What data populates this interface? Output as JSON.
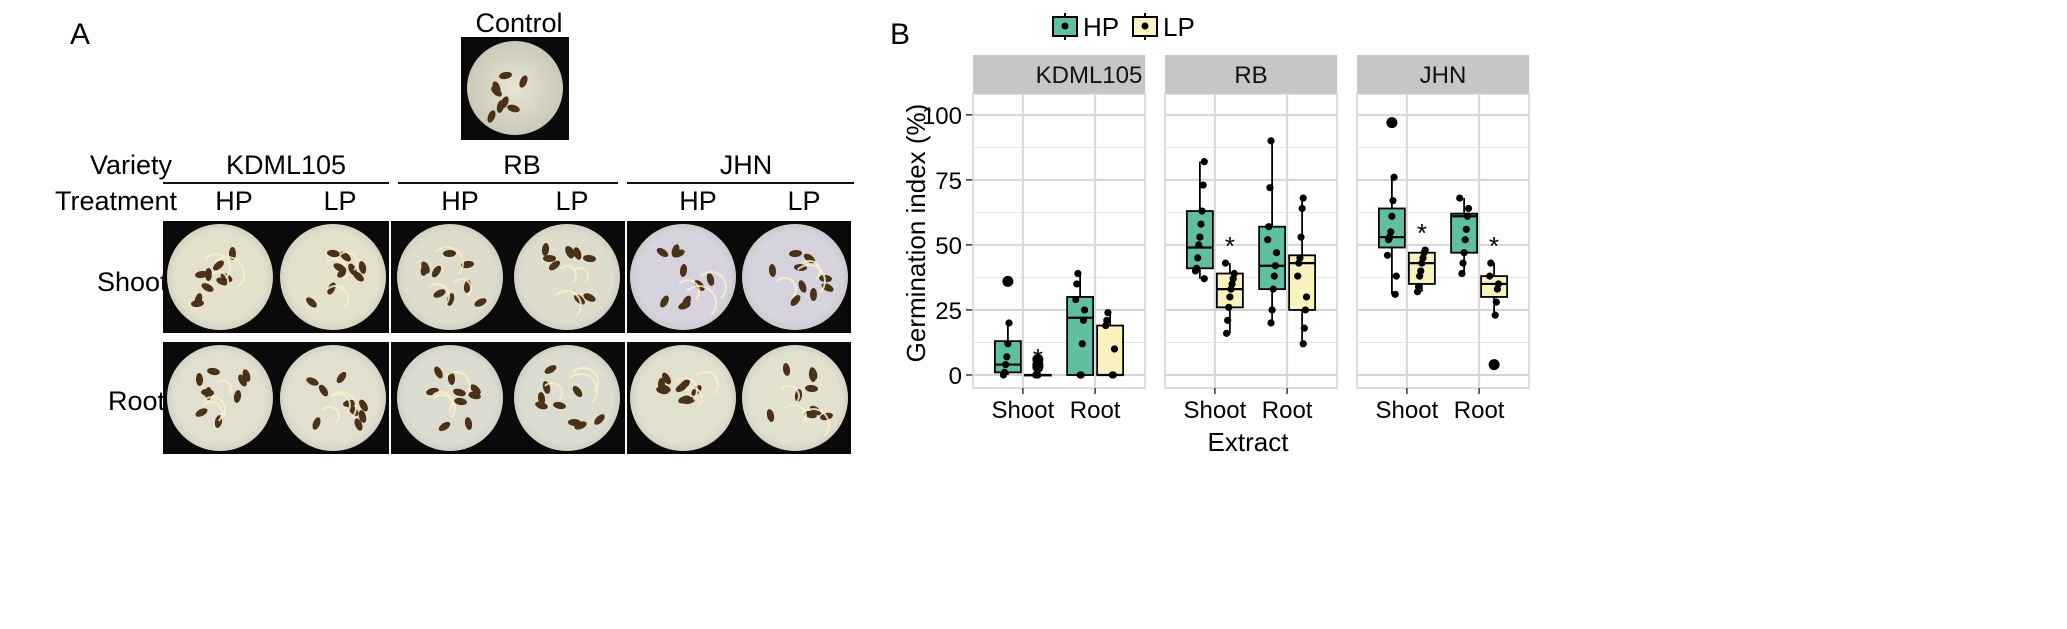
{
  "panel_a": {
    "letter": "A",
    "control_label": "Control",
    "variety_label": "Variety",
    "treatment_label": "Treatment",
    "varieties": [
      "KDML105",
      "RB",
      "JHN"
    ],
    "treatments": [
      "HP",
      "LP"
    ],
    "extracts": [
      "Shoot",
      "Root"
    ]
  },
  "panel_b": {
    "letter": "B",
    "legend": [
      {
        "label": "HP",
        "color": "#5fbfa0"
      },
      {
        "label": "LP",
        "color": "#fbf3bf"
      }
    ]
  },
  "chart_data": {
    "type": "box",
    "title": "",
    "xlabel": "Extract",
    "ylabel": "Germination index (%)",
    "ylim": [
      -5,
      108
    ],
    "yticks": [
      0,
      25,
      50,
      75,
      100
    ],
    "grid": true,
    "legend_position": "top",
    "facets": [
      "KDML105",
      "RB",
      "JHN"
    ],
    "categories": [
      "Shoot",
      "Root"
    ],
    "series": [
      {
        "name": "HP",
        "color": "#5fbfa0"
      },
      {
        "name": "LP",
        "color": "#fbf3bf"
      }
    ],
    "boxes": [
      {
        "facet": "KDML105",
        "category": "Shoot",
        "series": "HP",
        "min": 0,
        "q1": 1,
        "median": 4,
        "q3": 13,
        "max": 20,
        "points": [
          0,
          1,
          4,
          7,
          12,
          20,
          36
        ],
        "outliers": [
          36
        ],
        "signif": ""
      },
      {
        "facet": "KDML105",
        "category": "Shoot",
        "series": "LP",
        "min": 0,
        "q1": 0,
        "median": 0,
        "q3": 0,
        "max": 0,
        "points": [
          0,
          0,
          0,
          3,
          4,
          6
        ],
        "outliers": [
          3,
          4,
          6
        ],
        "signif": "*"
      },
      {
        "facet": "KDML105",
        "category": "Root",
        "series": "HP",
        "min": 0,
        "q1": 0,
        "median": 22,
        "q3": 30,
        "max": 39,
        "points": [
          0,
          0,
          12,
          21,
          25,
          29,
          35,
          39
        ],
        "outliers": [],
        "signif": ""
      },
      {
        "facet": "KDML105",
        "category": "Root",
        "series": "LP",
        "min": 0,
        "q1": 0,
        "median": 0,
        "q3": 19,
        "max": 24,
        "points": [
          0,
          0,
          10,
          19,
          21,
          24
        ],
        "outliers": [],
        "signif": ""
      },
      {
        "facet": "RB",
        "category": "Shoot",
        "series": "HP",
        "min": 37,
        "q1": 41,
        "median": 49,
        "q3": 63,
        "max": 82,
        "points": [
          37,
          40,
          41,
          45,
          50,
          53,
          58,
          63,
          73,
          82
        ],
        "outliers": [],
        "signif": ""
      },
      {
        "facet": "RB",
        "category": "Shoot",
        "series": "LP",
        "min": 16,
        "q1": 26,
        "median": 33,
        "q3": 39,
        "max": 43,
        "points": [
          16,
          21,
          26,
          30,
          33,
          35,
          37,
          39,
          43
        ],
        "outliers": [],
        "signif": "*"
      },
      {
        "facet": "RB",
        "category": "Root",
        "series": "HP",
        "min": 20,
        "q1": 33,
        "median": 42,
        "q3": 57,
        "max": 90,
        "points": [
          20,
          25,
          33,
          38,
          42,
          47,
          52,
          57,
          72,
          90
        ],
        "outliers": [],
        "signif": ""
      },
      {
        "facet": "RB",
        "category": "Root",
        "series": "LP",
        "min": 12,
        "q1": 25,
        "median": 43,
        "q3": 46,
        "max": 68,
        "points": [
          12,
          18,
          25,
          30,
          38,
          43,
          45,
          53,
          64,
          68
        ],
        "outliers": [],
        "signif": ""
      },
      {
        "facet": "JHN",
        "category": "Shoot",
        "series": "HP",
        "min": 31,
        "q1": 49,
        "median": 53,
        "q3": 64,
        "max": 76,
        "points": [
          31,
          38,
          46,
          52,
          53,
          55,
          61,
          67,
          76,
          97
        ],
        "outliers": [
          97
        ],
        "signif": ""
      },
      {
        "facet": "JHN",
        "category": "Shoot",
        "series": "LP",
        "min": 32,
        "q1": 35,
        "median": 43,
        "q3": 47,
        "max": 48,
        "points": [
          32,
          34,
          38,
          40,
          43,
          45,
          47,
          48
        ],
        "outliers": [],
        "signif": "*"
      },
      {
        "facet": "JHN",
        "category": "Root",
        "series": "HP",
        "min": 39,
        "q1": 47,
        "median": 61,
        "q3": 62,
        "max": 68,
        "points": [
          39,
          43,
          47,
          52,
          56,
          61,
          64,
          68
        ],
        "outliers": [],
        "signif": ""
      },
      {
        "facet": "JHN",
        "category": "Root",
        "series": "LP",
        "min": 23,
        "q1": 30,
        "median": 35,
        "q3": 38,
        "max": 43,
        "points": [
          4,
          23,
          28,
          33,
          35,
          38,
          43
        ],
        "outliers": [
          4
        ],
        "signif": "*"
      }
    ]
  }
}
